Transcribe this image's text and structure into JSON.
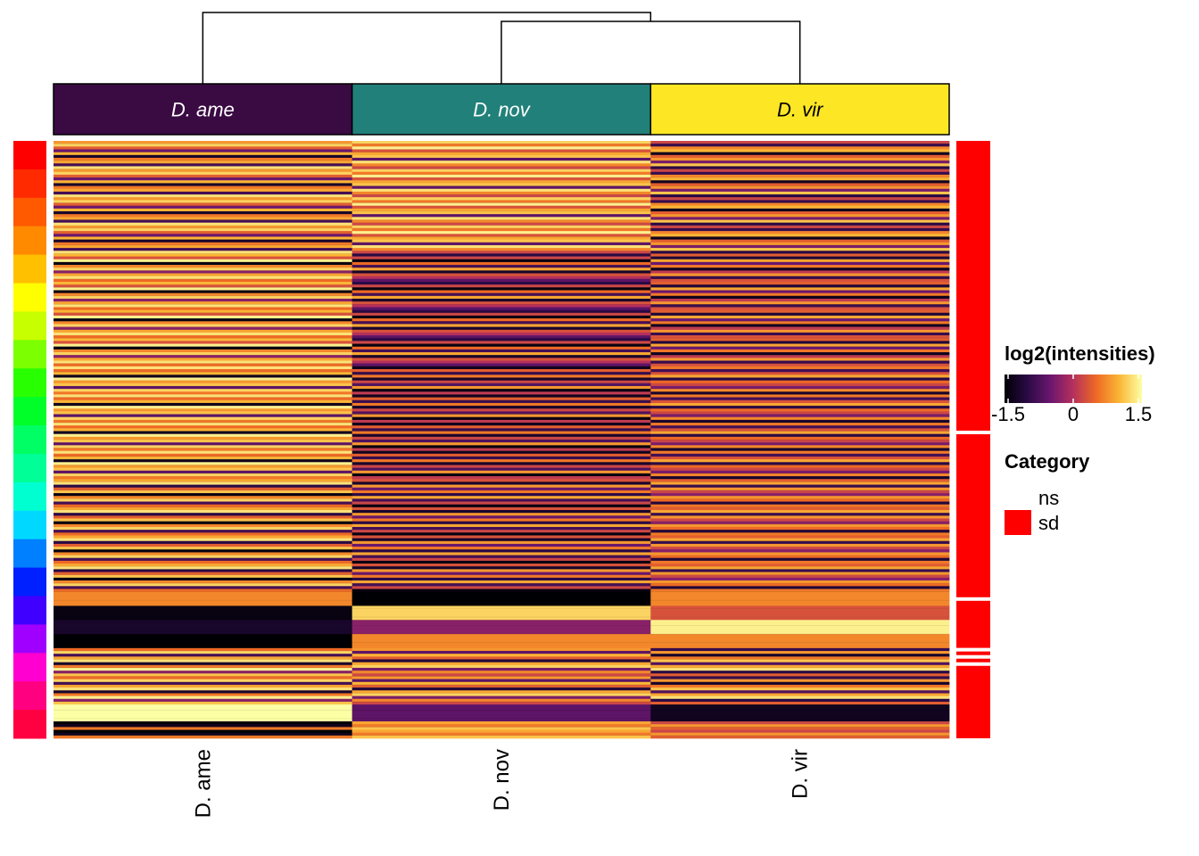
{
  "chart_data": {
    "type": "heatmap",
    "columns": [
      "D. ame",
      "D. nov",
      "D. vir"
    ],
    "column_header_colors": [
      "#3a0a43",
      "#21807a",
      "#fde725"
    ],
    "column_header_text_colors": [
      "#ffffff",
      "#ffffff",
      "#000000"
    ],
    "dendrogram": {
      "merges": [
        [
          "D. nov",
          "D. vir"
        ],
        [
          "D. ame",
          "D. nov+D. vir"
        ]
      ]
    },
    "color_scale": {
      "title": "log2(intensities)",
      "min": -1.5,
      "max": 1.5,
      "ticks": [
        "-1.5",
        "0",
        "1.5"
      ],
      "colors": [
        "#000004",
        "#2a0a45",
        "#6a176e",
        "#b5305c",
        "#ed6925",
        "#fbb535",
        "#fcffa4"
      ]
    },
    "category_legend": {
      "title": "Category",
      "items": [
        {
          "label": "ns",
          "color": "#ffffff"
        },
        {
          "label": "sd",
          "color": "#ff0000"
        }
      ]
    },
    "right_annotation_groups": [
      {
        "rows": 80,
        "category": "sd"
      },
      {
        "rows": 45,
        "category": "sd"
      },
      {
        "rows": 13,
        "category": "sd"
      },
      {
        "rows": 1,
        "category": "sd"
      },
      {
        "rows": 1,
        "category": "sd"
      },
      {
        "rows": 20,
        "category": "sd"
      }
    ],
    "left_annotation_colors": [
      "#ff0000",
      "#ff2a00",
      "#ff5a00",
      "#ff8a00",
      "#ffc000",
      "#ffff00",
      "#c8ff00",
      "#7cff00",
      "#28ff00",
      "#00ff28",
      "#00ff64",
      "#00ff96",
      "#00ffd0",
      "#00d8ff",
      "#0080ff",
      "#0020ff",
      "#4000ff",
      "#a000ff",
      "#ff00d0",
      "#ff0080",
      "#ff0040"
    ],
    "blocks": [
      {
        "rows": 40,
        "values": [
          [
            0.8,
            1.2,
            0.4,
            -0.5,
            1.0,
            -1.2,
            0.6,
            0.9,
            -0.8,
            1.3
          ],
          [
            1.2,
            0.6,
            1.4,
            0.3,
            0.9,
            1.1,
            -0.6,
            1.3,
            0.7,
            0.2
          ],
          [
            0.2,
            -0.9,
            0.7,
            1.0,
            -1.3,
            0.4,
            0.8,
            -0.4,
            1.1,
            -1.0
          ]
        ]
      },
      {
        "rows": 40,
        "values": [
          [
            1.0,
            0.3,
            1.4,
            -1.4,
            0.7,
            1.2,
            -0.3,
            0.9,
            1.3,
            0.5
          ],
          [
            -1.0,
            0.2,
            -1.4,
            0.5,
            -0.8,
            0.9,
            -1.2,
            0.3,
            0.0,
            -0.6
          ],
          [
            0.4,
            -1.1,
            0.9,
            -0.5,
            0.6,
            -1.3,
            0.1,
            0.8,
            -0.9,
            0.3
          ]
        ]
      },
      {
        "rows": 40,
        "values": [
          [
            1.3,
            0.5,
            1.0,
            -1.3,
            1.4,
            0.8,
            1.1,
            -0.6,
            1.2,
            0.6
          ],
          [
            -1.3,
            0.4,
            -0.9,
            0.6,
            -1.2,
            0.2,
            -0.7,
            0.8,
            -1.4,
            0.1
          ],
          [
            0.6,
            -0.8,
            0.3,
            0.9,
            -1.0,
            0.5,
            0.2,
            -0.4,
            0.7,
            -1.2
          ]
        ]
      },
      {
        "rows": 40,
        "values": [
          [
            0.9,
            1.3,
            -1.0,
            0.4,
            1.1,
            -1.4,
            0.7,
            1.2,
            -0.8,
            0.5
          ],
          [
            0.3,
            -1.2,
            0.8,
            -0.5,
            0.6,
            -1.0,
            0.9,
            -0.8,
            0.2,
            -1.4
          ],
          [
            0.4,
            0.9,
            -0.9,
            0.8,
            0.2,
            -0.3,
            0.8,
            0.5,
            -1.1,
            0.6
          ]
        ]
      },
      {
        "rows": 5,
        "values": [
          [
            0.7
          ],
          [
            -1.5
          ],
          [
            0.7
          ]
        ]
      },
      {
        "rows": 5,
        "values": [
          [
            -1.4
          ],
          [
            1.2
          ],
          [
            0.3
          ]
        ]
      },
      {
        "rows": 5,
        "values": [
          [
            -1.2
          ],
          [
            -0.3
          ],
          [
            1.4
          ]
        ]
      },
      {
        "rows": 5,
        "values": [
          [
            -1.5
          ],
          [
            0.7
          ],
          [
            0.7
          ]
        ]
      },
      {
        "rows": 20,
        "values": [
          [
            0.5,
            1.2,
            -0.8,
            0.9,
            1.3,
            -1.2,
            0.6,
            1.4,
            -0.3,
            1.1
          ],
          [
            0.8,
            -0.6,
            1.0,
            0.4,
            -1.1,
            0.9,
            1.2,
            -0.4,
            0.7,
            0.2
          ],
          [
            -0.9,
            0.8,
            -1.2,
            0.6,
            1.1,
            -0.7,
            0.9,
            1.3,
            -1.0,
            0.4
          ]
        ]
      },
      {
        "rows": 6,
        "values": [
          [
            1.5
          ],
          [
            -0.6
          ],
          [
            -1.3
          ]
        ]
      },
      {
        "rows": 6,
        "values": [
          [
            -1.5,
            -1.3,
            0.6
          ],
          [
            0.9,
            0.6,
            1.1
          ],
          [
            0.2,
            0.8,
            0.4
          ]
        ]
      }
    ]
  }
}
